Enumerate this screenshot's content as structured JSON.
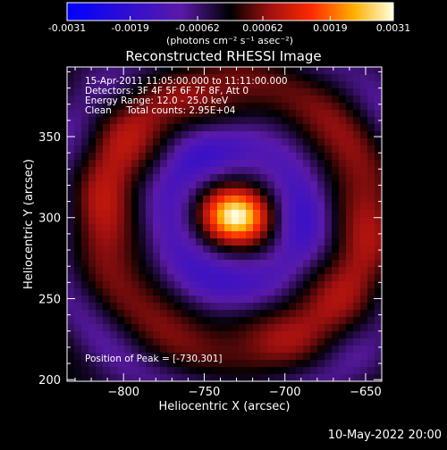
{
  "chart_data": {
    "type": "heatmap",
    "title": "Reconstructed RHESSI Image",
    "xlabel": "Heliocentric X (arcsec)",
    "ylabel": "Heliocentric Y (arcsec)",
    "xlim": [
      -835,
      -640
    ],
    "ylim": [
      199,
      393
    ],
    "x_ticks": [
      -800,
      -750,
      -700,
      -650
    ],
    "y_ticks": [
      200,
      250,
      300,
      350
    ],
    "peak": {
      "x": -730,
      "y": 301,
      "value": 0.0031
    },
    "colorbar": {
      "min": -0.0031,
      "max": 0.0031,
      "tick_values": [
        -0.0031,
        -0.0019,
        -0.00062,
        0.00062,
        0.0019,
        0.0031
      ],
      "tick_labels": [
        "-0.0031",
        "-0.0019",
        "-0.00062",
        "0.00062",
        "0.0019",
        "0.0031"
      ],
      "unit_label": "(photons cm⁻² s⁻¹ asec⁻²)"
    }
  },
  "annotations": {
    "time_range": "15-Apr-2011 11:05:00.000 to 11:11:00.000",
    "detectors": "Detectors: 3F 4F 5F 6F 7F 8F, Att 0",
    "energy": "Energy Range: 12.0 - 25.0 keV",
    "method": "Clean     Total counts: 2.95E+04",
    "peak_position": "Position of Peak = [-730,301]"
  },
  "footer": {
    "date": "10-May-2022 20:00"
  }
}
